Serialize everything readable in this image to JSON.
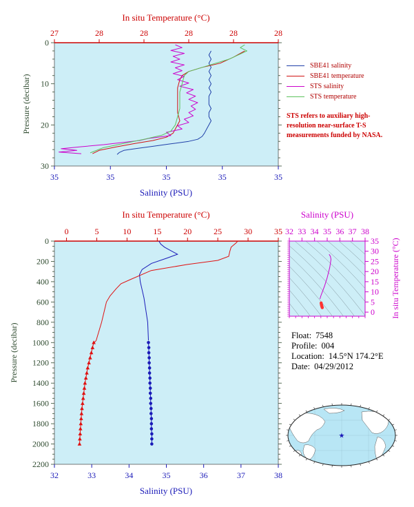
{
  "chart_data": [
    {
      "type": "line",
      "panel": "top",
      "title": "",
      "x_top_label": "In situ Temperature (°C)",
      "x_bottom_label": "Salinity (PSU)",
      "ylabel": "Pressure (decibar)",
      "top_ticks": [
        "27",
        "28",
        "28",
        "28",
        "28",
        "28"
      ],
      "bottom_ticks": [
        "35",
        "35",
        "35",
        "35",
        "35"
      ],
      "y_ticks": [
        "0",
        "10",
        "20",
        "30"
      ],
      "ylim": [
        0,
        30
      ],
      "y_inverted": true,
      "legend_placement": "right",
      "series": [
        {
          "name": "SBE41 salinity",
          "color": "#1f3fa8",
          "x": [
            0.7,
            0.69,
            0.7,
            0.69,
            0.7,
            0.69,
            0.7,
            0.69,
            0.7,
            0.69,
            0.7,
            0.69,
            0.69,
            0.69,
            0.7,
            0.69,
            0.69,
            0.7,
            0.69,
            0.68,
            0.67,
            0.66,
            0.64,
            0.6,
            0.52,
            0.44,
            0.36,
            0.31,
            0.29,
            0.28
          ],
          "y": [
            2,
            3,
            4,
            5,
            6,
            7,
            8,
            9,
            10,
            11,
            12,
            13,
            14,
            15,
            16,
            17,
            18,
            19,
            20,
            21,
            22,
            22.8,
            23.5,
            24,
            24.6,
            25.2,
            25.8,
            26.2,
            26.7,
            27.2
          ]
        },
        {
          "name": "SBE41 temperature",
          "color": "#d01010",
          "x": [
            0.85,
            0.8,
            0.74,
            0.66,
            0.6,
            0.57,
            0.56,
            0.55,
            0.55,
            0.55,
            0.55,
            0.56,
            0.55,
            0.54,
            0.53,
            0.5,
            0.44,
            0.36,
            0.28,
            0.2,
            0.17
          ],
          "y": [
            2,
            3.5,
            5,
            6,
            7,
            8,
            9,
            11,
            13,
            15,
            17,
            19,
            20,
            21,
            22,
            23,
            23.8,
            24.5,
            25.3,
            26.2,
            27
          ]
        },
        {
          "name": "STS salinity",
          "color": "#cc00cc",
          "x": [
            0.54,
            0.57,
            0.52,
            0.58,
            0.53,
            0.56,
            0.52,
            0.58,
            0.54,
            0.57,
            0.53,
            0.58,
            0.55,
            0.6,
            0.56,
            0.62,
            0.59,
            0.63,
            0.6,
            0.64,
            0.61,
            0.63,
            0.6,
            0.62,
            0.58,
            0.6,
            0.55,
            0.57,
            0.5,
            0.52,
            0.42,
            0.38,
            0.3,
            0.22,
            0.12,
            0.03,
            0.1,
            0.02,
            0.12
          ],
          "y": [
            0.5,
            1.2,
            1.9,
            2.6,
            3.3,
            4,
            4.7,
            5.4,
            6.1,
            6.8,
            7.5,
            8.2,
            9,
            9.8,
            10.6,
            11.4,
            12.2,
            13,
            13.8,
            14.6,
            15.4,
            16.2,
            17,
            17.8,
            18.6,
            19.4,
            20.2,
            21,
            21.8,
            22.6,
            23.3,
            23.8,
            24.3,
            24.8,
            25.3,
            25.8,
            26.2,
            26.6,
            27
          ]
        },
        {
          "name": "STS temperature",
          "color": "#5cc25c",
          "x": [
            0.85,
            0.83,
            0.86,
            0.82,
            0.78,
            0.72,
            0.66,
            0.6,
            0.58,
            0.57,
            0.56,
            0.56,
            0.56,
            0.55,
            0.54,
            0.52,
            0.48,
            0.4,
            0.31,
            0.22,
            0.16
          ],
          "y": [
            0.5,
            1.2,
            2,
            3,
            4,
            5,
            6,
            7,
            8,
            10,
            12,
            14,
            16,
            18,
            20,
            21.5,
            22.5,
            23.5,
            24.5,
            25.5,
            26.8
          ]
        }
      ]
    },
    {
      "type": "line",
      "panel": "bottom",
      "title": "",
      "x_top_label": "In situ Temperature (°C)",
      "x_bottom_label": "Salinity (PSU)",
      "ylabel": "Pressure (decibar)",
      "temperature_xlim": [
        -2,
        35
      ],
      "salinity_xlim": [
        32,
        38
      ],
      "ylim": [
        0,
        2200
      ],
      "y_inverted": true,
      "top_ticks": [
        0,
        5,
        10,
        15,
        20,
        25,
        30,
        35
      ],
      "bottom_ticks": [
        32,
        33,
        34,
        35,
        36,
        37,
        38
      ],
      "y_ticks": [
        0,
        200,
        400,
        600,
        800,
        1000,
        1200,
        1400,
        1600,
        1800,
        2000,
        2200
      ],
      "series": [
        {
          "name": "Salinity",
          "color": "#1a1ab8",
          "salinity": [
            34.8,
            34.85,
            34.95,
            35.1,
            35.3,
            35.0,
            34.6,
            34.35,
            34.28,
            34.3,
            34.35,
            34.4,
            34.45,
            34.5,
            34.52
          ],
          "pressure": [
            0,
            30,
            60,
            90,
            130,
            170,
            220,
            280,
            330,
            400,
            480,
            560,
            680,
            800,
            980
          ]
        },
        {
          "name": "Salinity samples",
          "color": "#1a1ab8",
          "salinity": [
            34.52,
            34.53,
            34.53,
            34.54,
            34.54,
            34.55,
            34.55,
            34.56,
            34.56,
            34.57,
            34.57,
            34.58,
            34.58,
            34.59,
            34.59,
            34.6,
            34.6,
            34.6,
            34.61,
            34.61,
            34.61
          ],
          "pressure": [
            1000,
            1050,
            1100,
            1150,
            1200,
            1250,
            1300,
            1350,
            1400,
            1450,
            1500,
            1550,
            1600,
            1650,
            1700,
            1750,
            1800,
            1850,
            1900,
            1950,
            2000
          ]
        },
        {
          "name": "Temperature",
          "color": "#e01010",
          "temperature": [
            28.3,
            28.0,
            27.2,
            27.0,
            26.8,
            25.0,
            20.0,
            14.0,
            10.5,
            9.0,
            8.2,
            7.2,
            6.6,
            6.2,
            5.8,
            5.3,
            4.9,
            4.6
          ],
          "pressure": [
            0,
            20,
            60,
            100,
            150,
            190,
            230,
            290,
            380,
            420,
            470,
            540,
            600,
            700,
            800,
            900,
            980,
            1000
          ]
        },
        {
          "name": "Temperature samples",
          "color": "#e01010",
          "temperature": [
            4.5,
            4.3,
            4.1,
            3.9,
            3.7,
            3.5,
            3.35,
            3.2,
            3.05,
            2.95,
            2.85,
            2.75,
            2.65,
            2.55,
            2.48,
            2.42,
            2.36,
            2.3,
            2.25,
            2.2,
            2.15
          ],
          "pressure": [
            1000,
            1050,
            1100,
            1150,
            1200,
            1250,
            1300,
            1350,
            1400,
            1450,
            1500,
            1550,
            1600,
            1650,
            1700,
            1750,
            1800,
            1850,
            1900,
            1950,
            2000
          ]
        }
      ]
    },
    {
      "type": "line",
      "panel": "ts_diagram",
      "x_top_label": "Salinity (PSU)",
      "ylabel": "In situ Temperature (°C)",
      "salinity_xlim": [
        32,
        38
      ],
      "temperature_ylim": [
        -2,
        35
      ],
      "top_ticks": [
        32,
        33,
        34,
        35,
        36,
        37,
        38
      ],
      "right_ticks": [
        0,
        5,
        10,
        15,
        20,
        25,
        30,
        35
      ],
      "series": [
        {
          "name": "T-S curve",
          "color": "#cc00cc",
          "salinity": [
            35.15,
            35.25,
            35.3,
            35.2,
            35.0,
            34.8,
            34.62,
            34.5,
            34.45,
            34.42
          ],
          "temperature": [
            28.5,
            27.5,
            26.0,
            22.0,
            17.0,
            13.0,
            10.0,
            8.0,
            7.0,
            6.5
          ]
        },
        {
          "name": "T-S samples",
          "color": "#ff3333",
          "salinity": [
            34.52,
            34.53,
            34.54,
            34.55,
            34.56,
            34.57,
            34.58,
            34.59,
            34.6,
            34.61
          ],
          "temperature": [
            4.5,
            4.1,
            3.8,
            3.5,
            3.2,
            3.0,
            2.8,
            2.6,
            2.4,
            2.2
          ]
        }
      ]
    }
  ],
  "legend": {
    "items": [
      {
        "label": "SBE41 salinity",
        "color": "#1f3fa8"
      },
      {
        "label": "SBE41 temperature",
        "color": "#d01010"
      },
      {
        "label": "STS salinity",
        "color": "#cc00cc"
      },
      {
        "label": "STS temperature",
        "color": "#5cc25c"
      }
    ],
    "note": "STS refers to auxiliary high-resolution near-surface T-S measurements funded by NASA."
  },
  "float_info": {
    "float_key": "Float:",
    "float_val": "7548",
    "profile_key": "Profile:",
    "profile_val": "004",
    "location_key": "Location:",
    "location_val": "14.5°N 174.2°E",
    "date_key": "Date:",
    "date_val": "04/29/2012"
  },
  "colors": {
    "panel_bg": "#cdeef7",
    "temperature_axis": "#cc0000",
    "salinity_axis": "#1a1ab8",
    "ts_axis": "#cc00cc",
    "pressure_axis": "#2e4a2e",
    "ocean": "#b8e6f5",
    "land": "#ffffff",
    "float_marker": "#1a1ab8"
  },
  "icons": {
    "float_marker": "star-icon",
    "world_map": "globe-map"
  }
}
